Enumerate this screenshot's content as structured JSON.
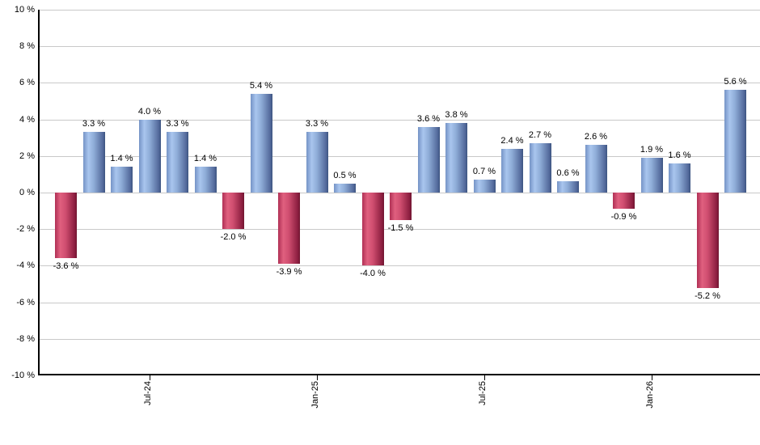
{
  "chart_data": {
    "type": "bar",
    "title": "",
    "xlabel": "",
    "ylabel": "",
    "ylim": [
      -10,
      10
    ],
    "grid": true,
    "legend": "none",
    "bars": [
      {
        "value": -3.6,
        "label": "-3.6 %"
      },
      {
        "value": 3.3,
        "label": "3.3 %"
      },
      {
        "value": 1.4,
        "label": "1.4 %"
      },
      {
        "value": 4.0,
        "label": "4.0 %"
      },
      {
        "value": 3.3,
        "label": "3.3 %"
      },
      {
        "value": 1.4,
        "label": "1.4 %"
      },
      {
        "value": -2.0,
        "label": "-2.0 %"
      },
      {
        "value": 5.4,
        "label": "5.4 %"
      },
      {
        "value": -3.9,
        "label": "-3.9 %"
      },
      {
        "value": 3.3,
        "label": "3.3 %"
      },
      {
        "value": 0.5,
        "label": "0.5 %"
      },
      {
        "value": -4.0,
        "label": "-4.0 %"
      },
      {
        "value": -1.5,
        "label": "-1.5 %"
      },
      {
        "value": 3.6,
        "label": "3.6 %"
      },
      {
        "value": 3.8,
        "label": "3.8 %"
      },
      {
        "value": 0.7,
        "label": "0.7 %"
      },
      {
        "value": 2.4,
        "label": "2.4 %"
      },
      {
        "value": 2.7,
        "label": "2.7 %"
      },
      {
        "value": 0.6,
        "label": "0.6 %"
      },
      {
        "value": 2.6,
        "label": "2.6 %"
      },
      {
        "value": -0.9,
        "label": "-0.9 %"
      },
      {
        "value": 1.9,
        "label": "1.9 %"
      },
      {
        "value": 1.6,
        "label": "1.6 %"
      },
      {
        "value": -5.2,
        "label": "-5.2 %"
      },
      {
        "value": 5.6,
        "label": "5.6 %"
      }
    ],
    "x_ticks": [
      {
        "label": "Jul-24",
        "bar_index": 3
      },
      {
        "label": "Jan-25",
        "bar_index": 9
      },
      {
        "label": "Jul-25",
        "bar_index": 15
      },
      {
        "label": "Jan-26",
        "bar_index": 21
      }
    ],
    "y_ticks": [
      {
        "value": 10,
        "label": "10 %"
      },
      {
        "value": 8,
        "label": "8 %"
      },
      {
        "value": 6,
        "label": "6 %"
      },
      {
        "value": 4,
        "label": "4 %"
      },
      {
        "value": 2,
        "label": "2 %"
      },
      {
        "value": 0,
        "label": "0 %"
      },
      {
        "value": -2,
        "label": "-2 %"
      },
      {
        "value": -4,
        "label": "-4 %"
      },
      {
        "value": -6,
        "label": "-6 %"
      },
      {
        "value": -8,
        "label": "-8 %"
      },
      {
        "value": -10,
        "label": "-10 %"
      }
    ],
    "colors": {
      "positive_edge": "#7593c6",
      "positive_light": "#a9c6ee",
      "positive_mid": "#8fadd8",
      "positive_dark": "#53699b",
      "positive_border": "#3c5480",
      "negative_edge": "#b03055",
      "negative_light": "#e0607f",
      "negative_mid": "#d04e70",
      "negative_dark": "#8c1f40",
      "negative_border": "#701530",
      "gridline": "#c9c9c9",
      "axis": "#000000",
      "text": "#000000"
    }
  }
}
